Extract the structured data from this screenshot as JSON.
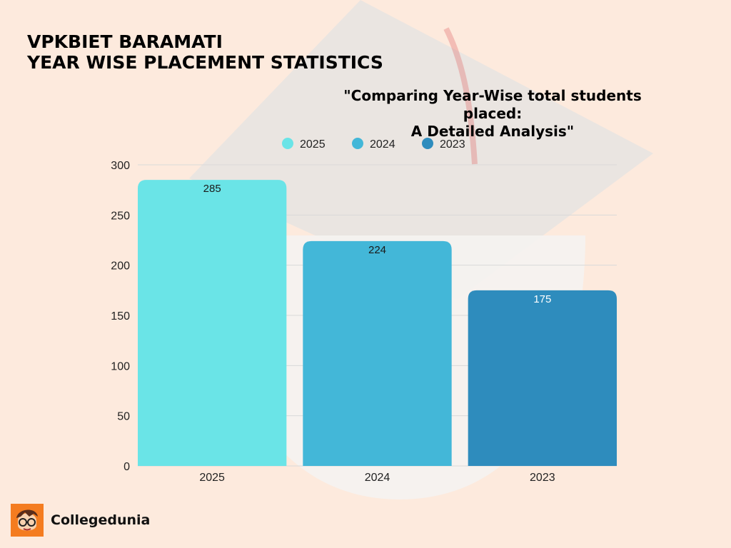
{
  "heading": {
    "line1": "VPKBIET BARAMATI",
    "line2": "YEAR WISE PLACEMENT STATISTICS"
  },
  "chart_title": {
    "line1": "\"Comparing Year-Wise total students placed:",
    "line2": "A Detailed Analysis\""
  },
  "brand": {
    "name": "Collegedunia",
    "logo_icon": "student-avatar-icon",
    "color": "#f47c20"
  },
  "colors": {
    "background": "#fdeadd",
    "grid": "#d9d9d9",
    "watermark": "#e6e6e6"
  },
  "chart_data": {
    "type": "bar",
    "title": "\"Comparing Year-Wise total students placed: A Detailed Analysis\"",
    "categories": [
      "2025",
      "2024",
      "2023"
    ],
    "values": [
      285,
      224,
      175
    ],
    "colors": [
      "#6ae4e7",
      "#43b7d8",
      "#2e8cbd"
    ],
    "data_label_colors": [
      "#1a1a1a",
      "#1a1a1a",
      "#ffffff"
    ],
    "legend": [
      "2025",
      "2024",
      "2023"
    ],
    "legend_position": "top",
    "yticks": [
      0,
      50,
      100,
      150,
      200,
      250,
      300
    ],
    "ylim": [
      0,
      300
    ],
    "xlabel": "",
    "ylabel": "",
    "grid": true
  }
}
